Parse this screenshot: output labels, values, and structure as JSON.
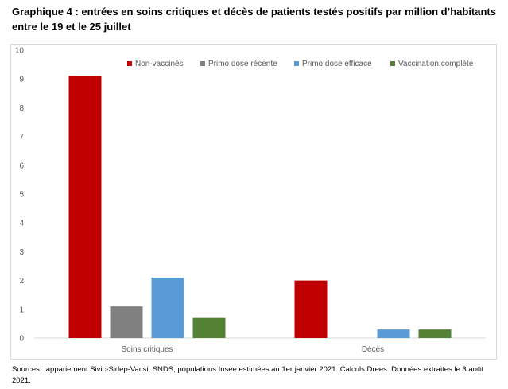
{
  "title": "Graphique 4 : entrées en soins critiques et décès de patients testés positifs par million d’habitants entre le 19 et le 25 juillet",
  "source": "Sources : appariement Sivic-Sidep-Vacsi, SNDS, populations Insee estimées au 1er janvier 2021. Calculs Drees. Données extraites le 3 août 2021.",
  "chart_data": {
    "type": "bar",
    "categories": [
      "Soins critiques",
      "Décès"
    ],
    "series": [
      {
        "name": "Non-vaccinés",
        "color": "#c00000",
        "values": [
          9.1,
          2.0
        ]
      },
      {
        "name": "Primo dose récente",
        "color": "#808080",
        "values": [
          1.1,
          0
        ]
      },
      {
        "name": "Primo dose efficace",
        "color": "#5b9bd5",
        "values": [
          2.1,
          0.3
        ]
      },
      {
        "name": "Vaccination complète",
        "color": "#548235",
        "values": [
          0.7,
          0.3
        ]
      }
    ],
    "ylim": [
      0,
      10
    ],
    "yticks": [
      0,
      1,
      2,
      3,
      4,
      5,
      6,
      7,
      8,
      9,
      10
    ],
    "grid": false,
    "legend_position": "top-right"
  }
}
